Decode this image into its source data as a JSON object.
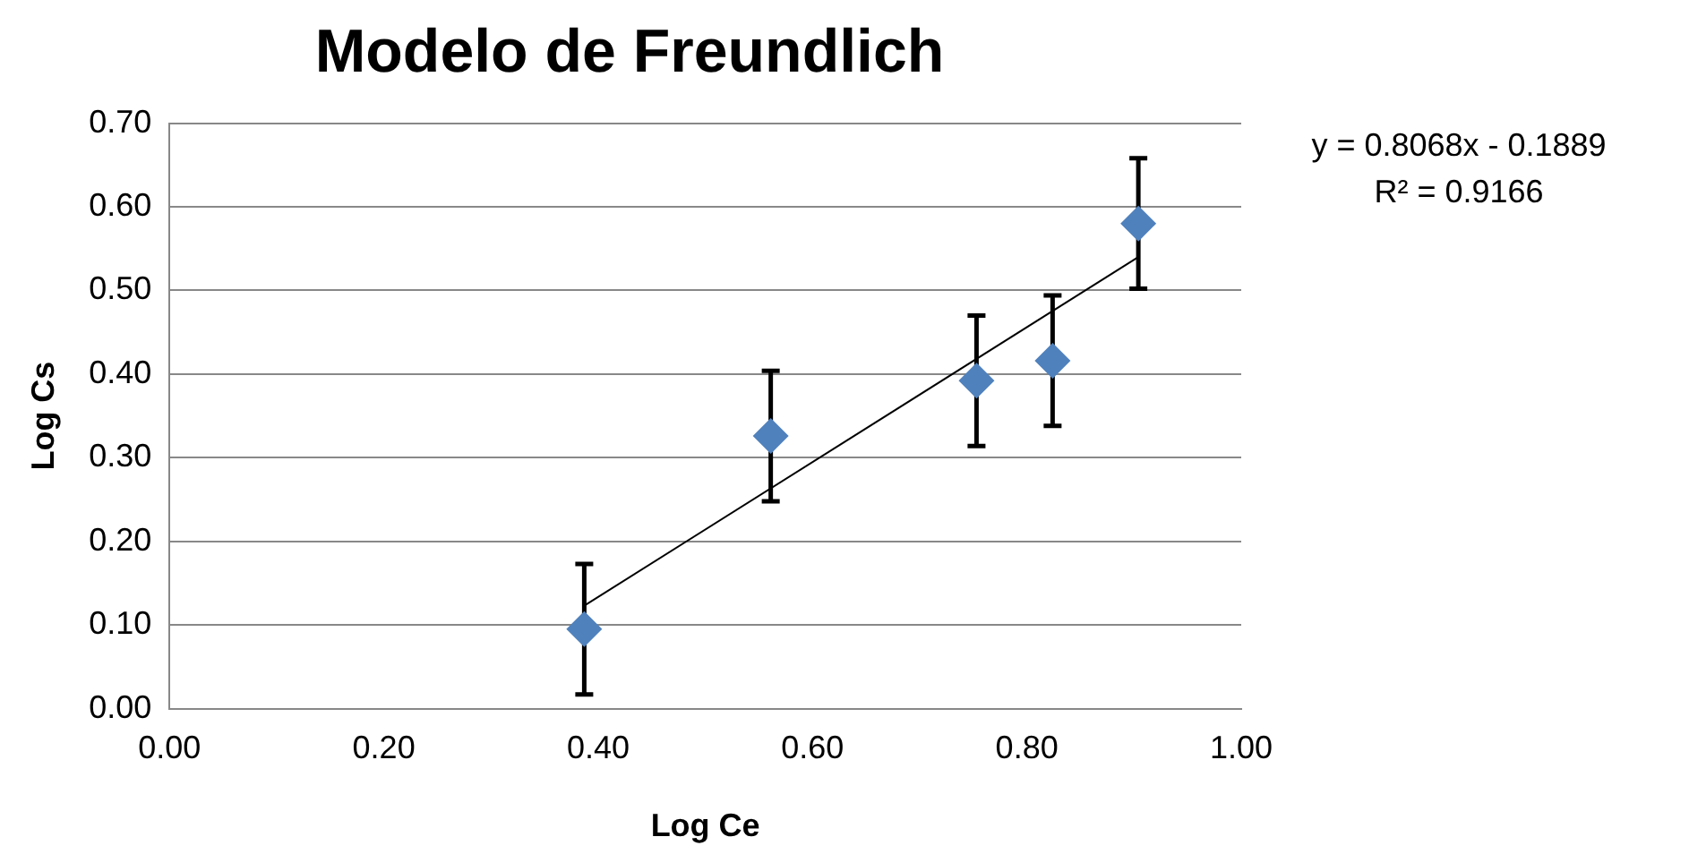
{
  "chart_data": {
    "type": "scatter",
    "title": "Modelo de Freundlich",
    "xlabel": "Log Ce",
    "ylabel": "Log Cs",
    "annotations": [
      "y = 0.8068x - 0.1889",
      "R² = 0.9166"
    ],
    "series": [
      {
        "color": "#4f81bd",
        "marker": "diamond",
        "x": [
          0.387,
          0.561,
          0.753,
          0.824,
          0.904
        ],
        "values": [
          0.095,
          0.326,
          0.392,
          0.416,
          0.58
        ],
        "errors": [
          0.078,
          0.078,
          0.078,
          0.078,
          0.078
        ]
      },
      {
        "type": "line",
        "color": "#000000",
        "marker": "none",
        "x": [
          0.387,
          0.904
        ],
        "values": [
          0.123,
          0.54
        ]
      }
    ],
    "xlim": [
      0,
      1
    ],
    "xticks": [
      {
        "value": 0,
        "label": "0.00"
      },
      {
        "value": 0.2,
        "label": "0.20"
      },
      {
        "value": 0.4,
        "label": "0.40"
      },
      {
        "value": 0.6,
        "label": "0.60"
      },
      {
        "value": 0.8,
        "label": "0.80"
      },
      {
        "value": 1,
        "label": "1.00"
      }
    ],
    "ylim": [
      0,
      0.7
    ],
    "yticks": [
      {
        "value": 0,
        "label": "0.00"
      },
      {
        "value": 0.1,
        "label": "0.10"
      },
      {
        "value": 0.2,
        "label": "0.20"
      },
      {
        "value": 0.3,
        "label": "0.30"
      },
      {
        "value": 0.4,
        "label": "0.40"
      },
      {
        "value": 0.5,
        "label": "0.50"
      },
      {
        "value": 0.6,
        "label": "0.60"
      },
      {
        "value": 0.7,
        "label": "0.70"
      }
    ],
    "grid": "y",
    "legend": false
  }
}
